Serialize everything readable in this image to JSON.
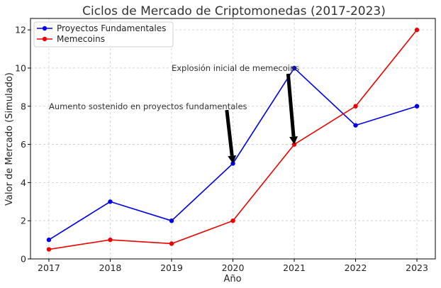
{
  "chart_data": {
    "type": "line",
    "title": "Ciclos de Mercado de Criptomonedas (2017-2023)",
    "xlabel": "Año",
    "ylabel": "Valor de Mercado (Simulado)",
    "x": [
      2017,
      2018,
      2019,
      2020,
      2021,
      2022,
      2023
    ],
    "xlim": [
      2016.7,
      2023.3
    ],
    "ylim": [
      0,
      12.6
    ],
    "yticks": [
      0,
      2,
      4,
      6,
      8,
      10,
      12
    ],
    "grid": true,
    "legend_position": "top-left",
    "series": [
      {
        "name": "Proyectos Fundamentales",
        "color": "#0000ee",
        "values": [
          1,
          3,
          2,
          5,
          10,
          7,
          8
        ]
      },
      {
        "name": "Memecoins",
        "color": "#ee0000",
        "values": [
          0.5,
          1,
          0.8,
          2,
          6,
          8,
          12
        ]
      }
    ],
    "annotations": [
      {
        "text": "Aumento sostenido en proyectos fundamentales",
        "text_x": 2017,
        "text_y": 8,
        "arrow_from": [
          2019.9,
          7.8
        ],
        "arrow_to": [
          2020,
          5
        ]
      },
      {
        "text": "Explosión inicial de memecoins",
        "text_x": 2019,
        "text_y": 10,
        "arrow_from": [
          2020.9,
          9.7
        ],
        "arrow_to": [
          2021,
          6
        ]
      }
    ]
  }
}
